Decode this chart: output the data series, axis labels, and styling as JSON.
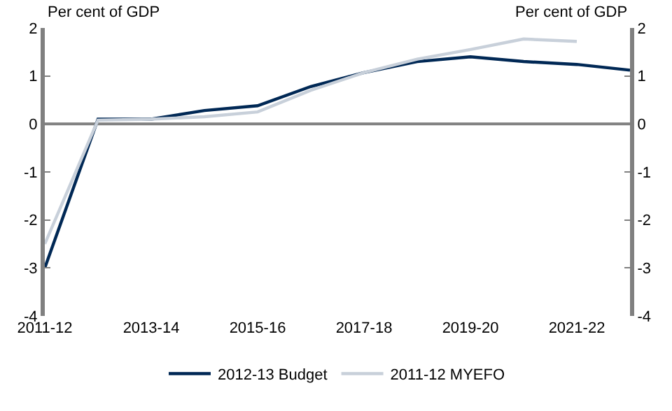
{
  "chart_data": {
    "type": "line",
    "ylabel": "Per cent of GDP",
    "y2label": "Per cent of GDP",
    "categories": [
      "2011-12",
      null,
      "2013-14",
      null,
      "2015-16",
      null,
      "2017-18",
      null,
      "2019-20",
      null,
      "2021-22",
      null
    ],
    "series": [
      {
        "name": "2012-13 Budget",
        "color": "#002855",
        "values": [
          -3.0,
          0.1,
          0.1,
          0.28,
          0.38,
          0.78,
          1.07,
          1.3,
          1.4,
          1.3,
          1.24,
          1.12
        ]
      },
      {
        "name": "2011-12 MYEFO",
        "color": "#c8d0da",
        "values": [
          -2.5,
          0.08,
          0.1,
          0.15,
          0.25,
          0.7,
          1.07,
          1.35,
          1.55,
          1.77,
          1.72,
          null
        ]
      }
    ],
    "ylim": [
      -4,
      2
    ],
    "yticks": [
      -4,
      -3,
      -2,
      -1,
      0,
      1,
      2
    ],
    "y2lim": [
      -4,
      2
    ],
    "y2ticks": [
      -4,
      -3,
      -2,
      -1,
      0,
      1,
      2
    ],
    "ref_lines": [
      {
        "axis": "y",
        "value": 0,
        "color": "#808080"
      }
    ],
    "grid": false,
    "legend": "bottom",
    "marker": "none",
    "line_style": "solid"
  }
}
